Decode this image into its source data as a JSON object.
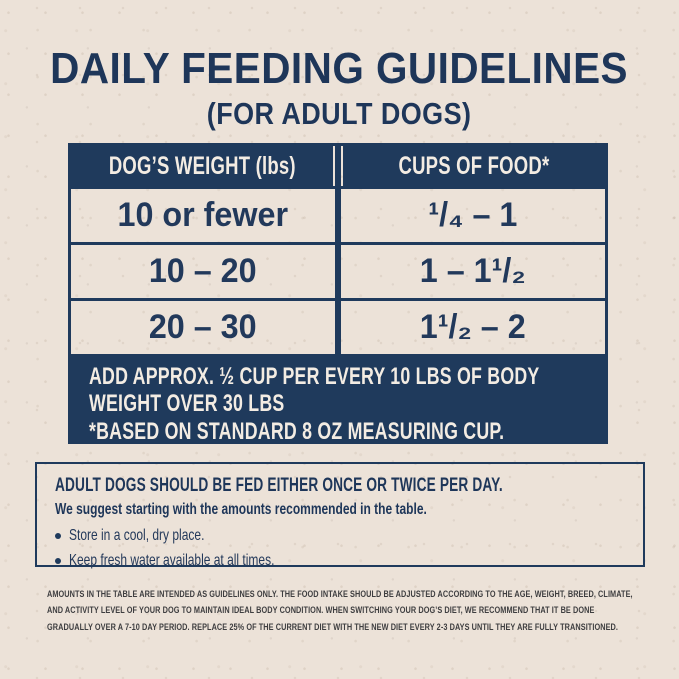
{
  "colors": {
    "navy": "#1f3a5c",
    "cream_background": "#ece2d8",
    "light_text_on_navy": "#f3ece3",
    "fine_print_text": "#3e3e40"
  },
  "header": {
    "title": "DAILY FEEDING GUIDELINES",
    "subtitle": "(FOR ADULT DOGS)"
  },
  "table": {
    "columns": [
      {
        "label": "DOG’S WEIGHT (lbs)"
      },
      {
        "label": "CUPS OF FOOD*"
      }
    ],
    "rows": [
      {
        "weight": "10 or fewer",
        "cups": "¹/₄ – 1"
      },
      {
        "weight": "10 – 20",
        "cups": "1 – 1¹/₂"
      },
      {
        "weight": "20 – 30",
        "cups": "1¹/₂ – 2"
      }
    ],
    "footnote": {
      "line1": "ADD APPROX. ½ CUP PER EVERY 10 LBS OF BODY WEIGHT OVER 30 LBS",
      "line2": "*BASED ON STANDARD 8 OZ MEASURING CUP."
    }
  },
  "note_box": {
    "heading": "ADULT DOGS SHOULD BE FED EITHER ONCE OR TWICE PER DAY.",
    "subheading": "We suggest starting with the amounts recommended in the table.",
    "bullets": [
      {
        "text": "Store in a cool, dry place."
      },
      {
        "text": "Keep fresh water available at all times."
      }
    ]
  },
  "fine_print": {
    "lines": [
      "AMOUNTS IN THE TABLE ARE INTENDED AS GUIDELINES ONLY. THE FOOD INTAKE SHOULD BE ADJUSTED ACCORDING TO THE AGE, WEIGHT, BREED, CLIMATE,",
      "AND ACTIVITY LEVEL OF YOUR DOG TO MAINTAIN IDEAL BODY CONDITION. WHEN SWITCHING YOUR DOG’S DIET, WE RECOMMEND THAT IT BE DONE",
      "GRADUALLY OVER A 7-10 DAY PERIOD. REPLACE 25% OF THE CURRENT DIET WITH THE NEW DIET EVERY 2-3 DAYS UNTIL THEY ARE FULLY TRANSITIONED."
    ]
  }
}
